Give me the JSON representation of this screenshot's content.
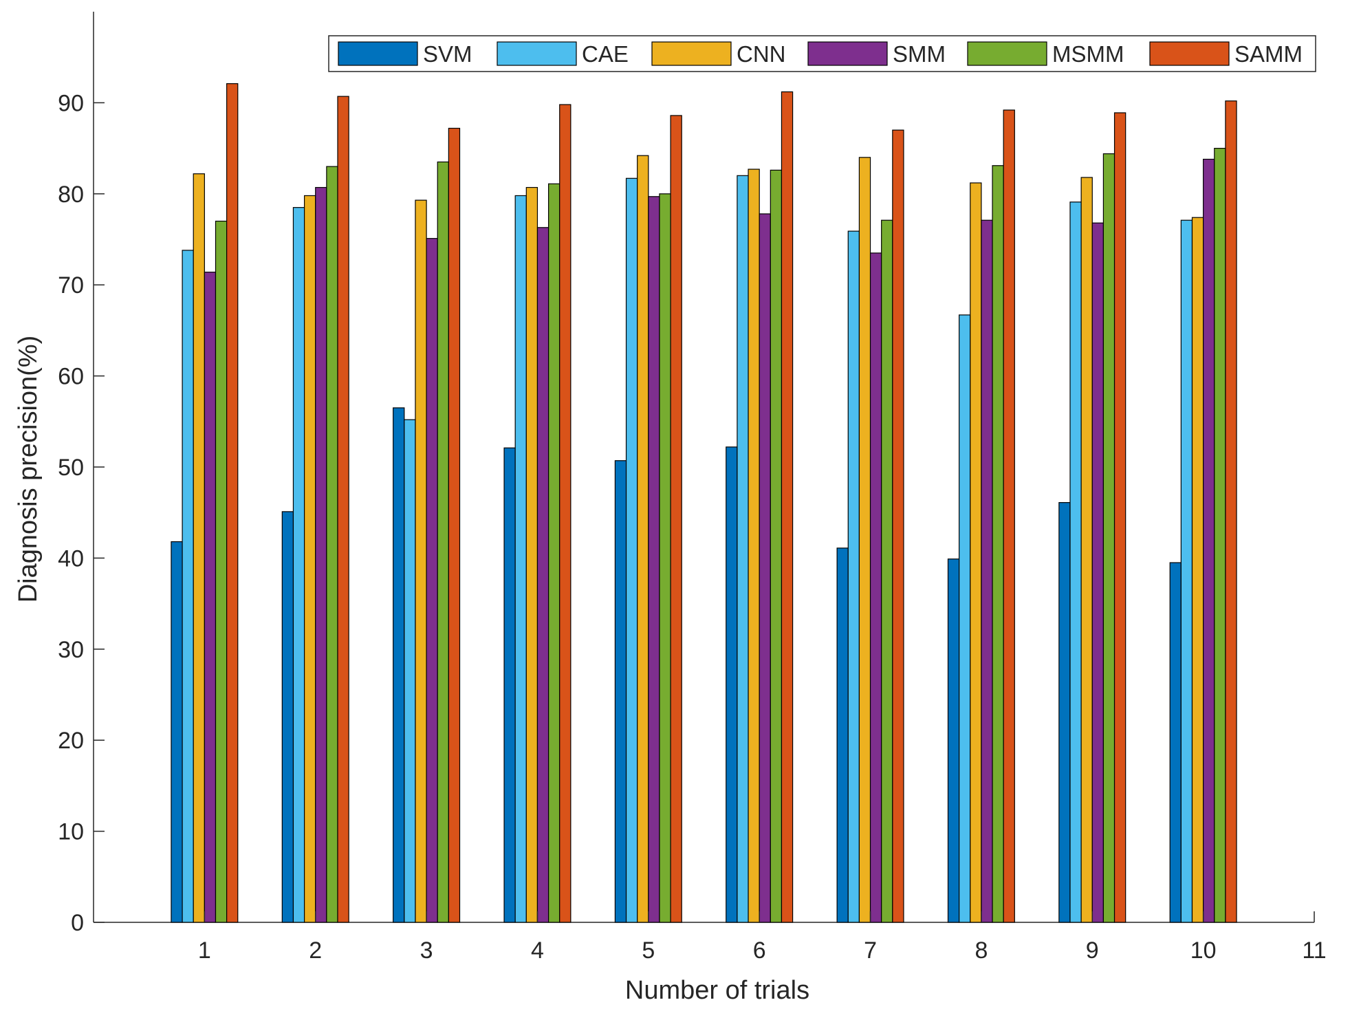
{
  "chart_data": {
    "type": "bar",
    "title": "",
    "xlabel": "Number of trials",
    "ylabel": "Diagnosis precision(%)",
    "categories": [
      "1",
      "2",
      "3",
      "4",
      "5",
      "6",
      "7",
      "8",
      "9",
      "10"
    ],
    "xticks": [
      "1",
      "2",
      "3",
      "4",
      "5",
      "6",
      "7",
      "8",
      "9",
      "10",
      "11"
    ],
    "xlim": [
      0.0,
      11.0
    ],
    "ylim": [
      0,
      100
    ],
    "yticks": [
      "0",
      "10",
      "20",
      "30",
      "40",
      "50",
      "60",
      "70",
      "80",
      "90"
    ],
    "legend_position": "top-right",
    "series": [
      {
        "name": "SVM",
        "color": "#0072BD",
        "values": [
          41.8,
          45.1,
          56.5,
          52.1,
          50.7,
          52.2,
          41.1,
          39.9,
          46.1,
          39.5
        ]
      },
      {
        "name": "CAE",
        "color": "#4DBEEE",
        "values": [
          73.8,
          78.5,
          55.2,
          79.8,
          81.7,
          82.0,
          75.9,
          66.7,
          79.1,
          77.1
        ]
      },
      {
        "name": "CNN",
        "color": "#EDB120",
        "values": [
          82.2,
          79.8,
          79.3,
          80.7,
          84.2,
          82.7,
          84.0,
          81.2,
          81.8,
          77.4
        ]
      },
      {
        "name": "SMM",
        "color": "#7E2F8E",
        "values": [
          71.4,
          80.7,
          75.1,
          76.3,
          79.7,
          77.8,
          73.5,
          77.1,
          76.8,
          83.8
        ]
      },
      {
        "name": "MSMM",
        "color": "#77AC30",
        "values": [
          77.0,
          83.0,
          83.5,
          81.1,
          80.0,
          82.6,
          77.1,
          83.1,
          84.4,
          85.0
        ]
      },
      {
        "name": "SAMM",
        "color": "#D95319",
        "values": [
          92.1,
          90.7,
          87.2,
          89.8,
          88.6,
          91.2,
          87.0,
          89.2,
          88.9,
          90.2
        ]
      }
    ]
  }
}
